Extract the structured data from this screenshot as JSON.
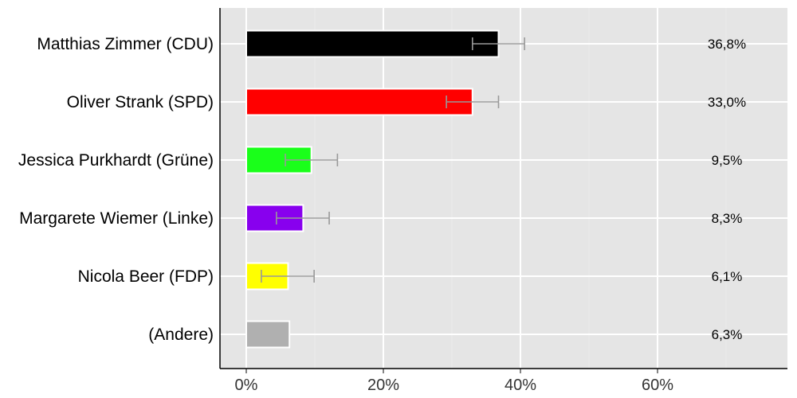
{
  "chart_data": {
    "type": "bar",
    "orientation": "horizontal",
    "title": "",
    "xlabel": "",
    "ylabel": "",
    "xlim": [
      0,
      75
    ],
    "x_ticks": [
      0,
      20,
      40,
      60
    ],
    "x_tick_labels": [
      "0%",
      "20%",
      "40%",
      "60%"
    ],
    "grid": true,
    "categories": [
      "Matthias Zimmer (CDU)",
      "Oliver Strank (SPD)",
      "Jessica Purkhardt (Grüne)",
      "Margarete Wiemer (Linke)",
      "Nicola Beer (FDP)",
      "(Andere)"
    ],
    "values": [
      36.8,
      33.0,
      9.5,
      8.3,
      6.1,
      6.3
    ],
    "value_labels": [
      "36,8%",
      "33,0%",
      "9,5%",
      "8,3%",
      "6,1%",
      "6,3%"
    ],
    "error_low": [
      33.0,
      29.2,
      5.7,
      4.4,
      2.2,
      null
    ],
    "error_high": [
      40.6,
      36.8,
      13.3,
      12.1,
      9.9,
      null
    ],
    "colors": [
      "#000000",
      "#ff0000",
      "#1aff1a",
      "#8800ee",
      "#ffff00",
      "#b0b0b0"
    ]
  }
}
